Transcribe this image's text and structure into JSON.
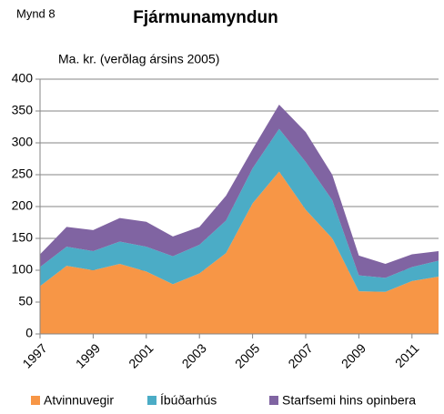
{
  "chart_data": {
    "type": "stacked_area",
    "label": "Mynd 8",
    "title": "Fjármunamyndun",
    "subtitle": "Ma. kr. (verðlag ársins 2005)",
    "x": [
      1997,
      1998,
      1999,
      2000,
      2001,
      2002,
      2003,
      2004,
      2005,
      2006,
      2007,
      2008,
      2009,
      2010,
      2011,
      2012
    ],
    "xlim": [
      1997,
      2012
    ],
    "xticks": [
      1997,
      1999,
      2001,
      2003,
      2005,
      2007,
      2009,
      2011
    ],
    "ylim": [
      0,
      400
    ],
    "yticks": [
      0,
      50,
      100,
      150,
      200,
      250,
      300,
      350,
      400
    ],
    "grid": true,
    "legend": "bottom",
    "series": [
      {
        "name": "Atvinnuvegir",
        "color": "#f79646",
        "values": [
          75,
          107,
          100,
          110,
          98,
          78,
          95,
          127,
          205,
          255,
          195,
          150,
          67,
          66,
          83,
          90
        ]
      },
      {
        "name": "Íbúðarhús",
        "color": "#4bacc6",
        "values": [
          30,
          30,
          30,
          35,
          39,
          44,
          45,
          51,
          55,
          67,
          75,
          60,
          25,
          22,
          22,
          25
        ]
      },
      {
        "name": "Starfsemi hins opinbera",
        "color": "#8064a2",
        "values": [
          20,
          31,
          33,
          37,
          39,
          31,
          28,
          39,
          30,
          38,
          47,
          40,
          31,
          22,
          20,
          15
        ]
      }
    ]
  }
}
